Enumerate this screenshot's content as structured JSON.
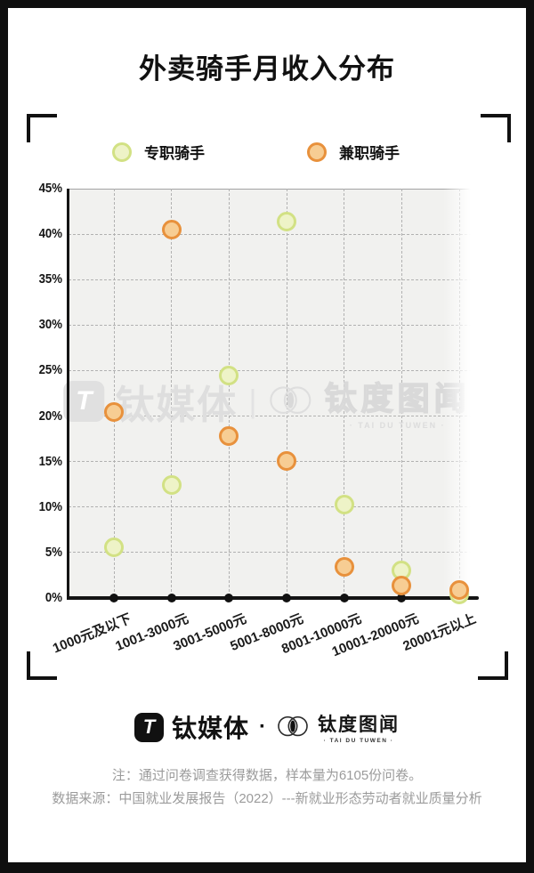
{
  "page": {
    "title": "外卖骑手月收入分布"
  },
  "legend": [
    {
      "label": "专职骑手",
      "fill": "#eef3c7",
      "stroke": "#d2e184"
    },
    {
      "label": "兼职骑手",
      "fill": "#f7cd93",
      "stroke": "#e8913c"
    }
  ],
  "chart_data": {
    "type": "scatter",
    "title": "外卖骑手月收入分布",
    "categories": [
      "1000元及以下",
      "1001-3000元",
      "3001-5000元",
      "5001-8000元",
      "8001-10000元",
      "10001-20000元",
      "20001元以上"
    ],
    "series": [
      {
        "name": "专职骑手",
        "values": [
          5.6,
          12.4,
          24.5,
          41.4,
          10.3,
          3.0,
          0.4
        ],
        "fill": "#eef3c7",
        "stroke": "#d2e184"
      },
      {
        "name": "兼职骑手",
        "values": [
          20.4,
          40.5,
          17.8,
          15.1,
          3.4,
          1.4,
          0.9
        ],
        "fill": "#f7cd93",
        "stroke": "#e8913c"
      }
    ],
    "yticks": [
      "0%",
      "5%",
      "10%",
      "15%",
      "20%",
      "25%",
      "30%",
      "35%",
      "40%",
      "45%"
    ],
    "ylim": [
      0,
      45
    ],
    "grid": true,
    "legend_position": "top",
    "xlabel": "",
    "ylabel": ""
  },
  "watermark": {
    "logo_letter": "T",
    "brand1": "钛媒体",
    "separator": "|",
    "brand2": "钛度图闻",
    "brand2_sub": "· TAI DU TUWEN ·"
  },
  "footer": {
    "logo_letter": "T",
    "brand1": "钛媒体",
    "separator": "·",
    "brand2": "钛度图闻",
    "brand2_sub": "· TAI DU TUWEN ·"
  },
  "notes": {
    "line1": "注：通过问卷调查获得数据，样本量为6105份问卷。",
    "line2": "数据来源：中国就业发展报告（2022）---新就业形态劳动者就业质量分析"
  },
  "colors": {
    "plot_bg": "#f1f1ef",
    "grid": "#b1b1b1",
    "axis": "#141414",
    "note_text": "#9b9b9b",
    "watermark": "#dedede",
    "frame": "#0f0f0f"
  }
}
